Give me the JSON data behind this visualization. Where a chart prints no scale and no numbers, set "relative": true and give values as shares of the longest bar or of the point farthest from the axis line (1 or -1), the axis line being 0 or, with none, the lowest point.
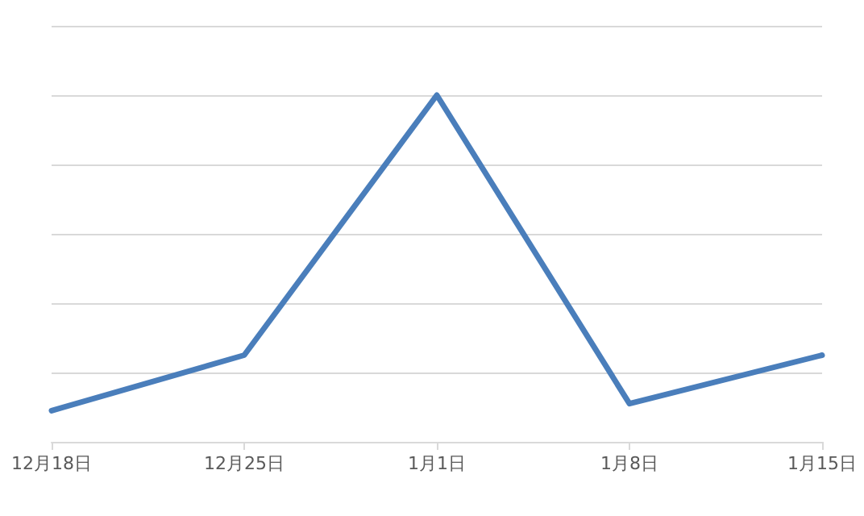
{
  "chart_data": {
    "type": "line",
    "relative": true,
    "categories": [
      "12月18日",
      "12月25日",
      "1月1日",
      "1月8日",
      "1月15日"
    ],
    "series": [
      {
        "color": "#4a7ebb",
        "values": [
          0.09,
          0.25,
          1,
          0.11,
          0.25
        ]
      }
    ],
    "grid": "y",
    "marker": "none",
    "line_style": "solid"
  }
}
